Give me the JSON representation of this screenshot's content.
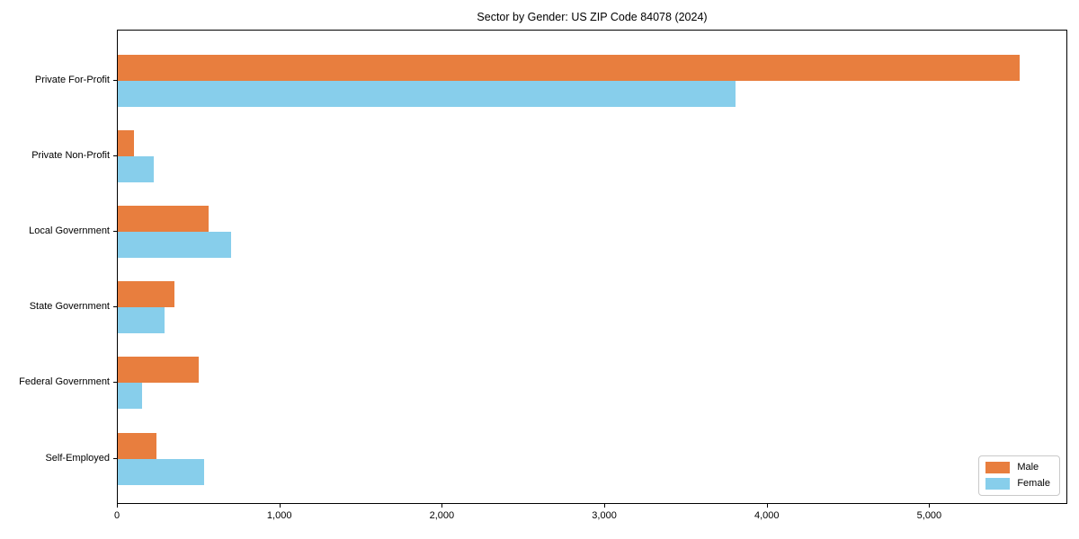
{
  "figure": {
    "background": "#ffffff"
  },
  "chart_data": {
    "type": "bar",
    "orientation": "horizontal",
    "title": "Sector by Gender: US ZIP Code 84078 (2024)",
    "categories": [
      "Private For-Profit",
      "Private Non-Profit",
      "Local Government",
      "State Government",
      "Federal Government",
      "Self-Employed"
    ],
    "series": [
      {
        "name": "Male",
        "color": "#E87E3E",
        "values": [
          5560,
          100,
          560,
          350,
          500,
          240
        ]
      },
      {
        "name": "Female",
        "color": "#87CEEB",
        "values": [
          3810,
          220,
          700,
          290,
          150,
          530
        ]
      }
    ],
    "xlim": [
      0,
      5850
    ],
    "xticks": [
      0,
      1000,
      2000,
      3000,
      4000,
      5000
    ],
    "xtick_labels": [
      "0",
      "1,000",
      "2,000",
      "3,000",
      "4,000",
      "5,000"
    ],
    "legend": {
      "entries": [
        "Male",
        "Female"
      ],
      "position": "lower right"
    },
    "grid": false
  }
}
